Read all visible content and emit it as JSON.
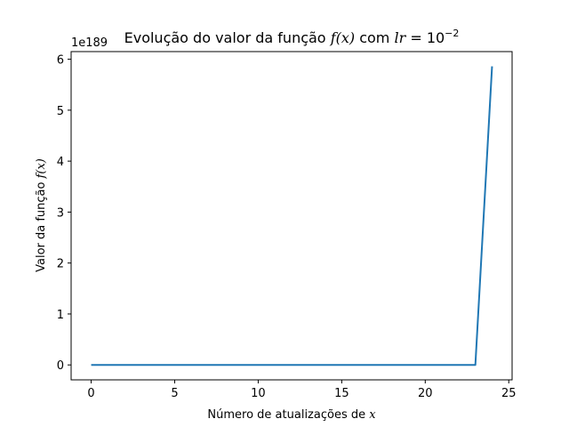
{
  "chart_data": {
    "type": "line",
    "title": "Evolução do valor da função f(x) com lr = 10⁻²",
    "title_parts": {
      "prefix": "Evolução do valor da função ",
      "fx": "f(x)",
      "mid": " com ",
      "lr": "lr",
      "eq": " = 10",
      "exp": "−2"
    },
    "xlabel": "Número de atualizações de x",
    "xlabel_parts": {
      "text": "Número de atualizações de ",
      "var": "x"
    },
    "ylabel": "Valor da função f(x)",
    "ylabel_parts": {
      "text": "Valor da função ",
      "var": "f(x)"
    },
    "y_offset_label": "1e189",
    "y_scale_factor": "1e189",
    "xlim": [
      -1.2,
      25.2
    ],
    "ylim": [
      -0.293,
      6.15
    ],
    "xticks": [
      0,
      5,
      10,
      15,
      20,
      25
    ],
    "yticks": [
      0,
      1,
      2,
      3,
      4,
      5,
      6
    ],
    "grid": false,
    "legend": "none",
    "series": [
      {
        "color": "#1f77b4",
        "x": [
          0,
          1,
          2,
          3,
          4,
          5,
          6,
          7,
          8,
          9,
          10,
          11,
          12,
          13,
          14,
          15,
          16,
          17,
          18,
          19,
          20,
          21,
          22,
          23,
          24
        ],
        "y": [
          0,
          0,
          0,
          0,
          0,
          0,
          0,
          0,
          0,
          0,
          0,
          0,
          0,
          0,
          0,
          0,
          0,
          0,
          0,
          0,
          0,
          0,
          0,
          0,
          5.86
        ]
      }
    ]
  }
}
